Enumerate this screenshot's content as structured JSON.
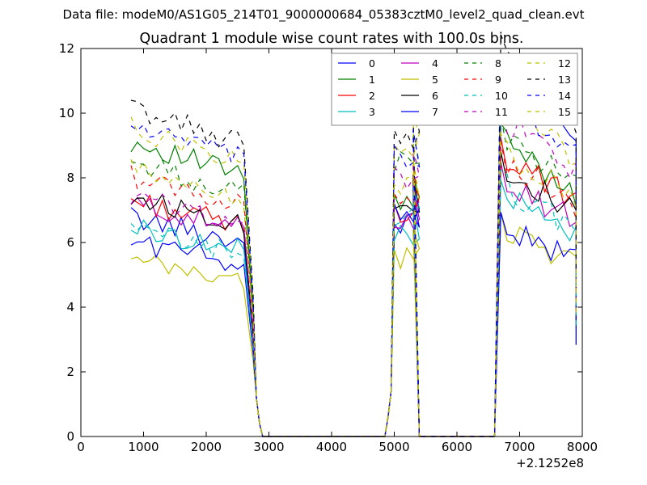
{
  "suptitle": "Data file: modeM0/AS1G05_214T01_9000000684_05383cztM0_level2_quad_clean.evt",
  "chart_data": {
    "type": "line",
    "title": "Quadrant 1 module wise count rates with 100.0s bins.",
    "xlabel": "",
    "ylabel": "",
    "xlim": [
      0,
      8000
    ],
    "ylim": [
      0,
      12
    ],
    "x_offset_label": "+2.1252e8",
    "xticks": [
      0,
      1000,
      2000,
      3000,
      4000,
      5000,
      6000,
      7000,
      8000
    ],
    "yticks": [
      0,
      2,
      4,
      6,
      8,
      10,
      12
    ],
    "xtick_labels": [
      "0",
      "1000",
      "2000",
      "3000",
      "4000",
      "5000",
      "6000",
      "7000",
      "8000"
    ],
    "ytick_labels": [
      "0",
      "2",
      "4",
      "6",
      "8",
      "10",
      "12"
    ],
    "grid": false,
    "legend_position": "top-right",
    "legend_columns": 4,
    "segments": [
      {
        "x_start": 800,
        "x_step": 100,
        "count": 19
      },
      {
        "x_start": 4900,
        "x_step": 100,
        "count": 5
      },
      {
        "x_start": 6700,
        "x_step": 100,
        "count": 13
      }
    ],
    "series": [
      {
        "name": "0",
        "color": "#0000ff",
        "dash": "solid",
        "levels": [
          6.4,
          6.6,
          10.7
        ]
      },
      {
        "name": "1",
        "color": "#008000",
        "dash": "solid",
        "levels": [
          8.6,
          7.2,
          8.8
        ]
      },
      {
        "name": "2",
        "color": "#ff0000",
        "dash": "solid",
        "levels": [
          6.9,
          7.0,
          8.4
        ]
      },
      {
        "name": "3",
        "color": "#00bfbf",
        "dash": "solid",
        "levels": [
          6.1,
          6.3,
          7.2
        ]
      },
      {
        "name": "4",
        "color": "#bf00bf",
        "dash": "solid",
        "levels": [
          6.8,
          6.8,
          7.7
        ]
      },
      {
        "name": "5",
        "color": "#bfbf00",
        "dash": "solid",
        "levels": [
          5.1,
          5.5,
          6.3
        ]
      },
      {
        "name": "6",
        "color": "#000000",
        "dash": "solid",
        "levels": [
          7.0,
          7.2,
          8.0
        ]
      },
      {
        "name": "7",
        "color": "#0000ff",
        "dash": "solid",
        "levels": [
          5.7,
          6.9,
          6.3
        ]
      },
      {
        "name": "8",
        "color": "#008000",
        "dash": "dashed",
        "levels": [
          8.0,
          8.5,
          9.0
        ]
      },
      {
        "name": "9",
        "color": "#ff0000",
        "dash": "dashed",
        "levels": [
          7.6,
          7.5,
          8.3
        ]
      },
      {
        "name": "10",
        "color": "#00bfbf",
        "dash": "dashed",
        "levels": [
          6.0,
          6.8,
          7.5
        ]
      },
      {
        "name": "11",
        "color": "#bf00bf",
        "dash": "dashed",
        "levels": [
          7.0,
          8.0,
          9.5
        ]
      },
      {
        "name": "12",
        "color": "#bfbf00",
        "dash": "dashed",
        "levels": [
          9.0,
          9.0,
          10.0
        ]
      },
      {
        "name": "13",
        "color": "#000000",
        "dash": "dashed",
        "levels": [
          9.6,
          9.3,
          11.3
        ]
      },
      {
        "name": "14",
        "color": "#0000ff",
        "dash": "dashed",
        "levels": [
          9.1,
          8.6,
          10.2
        ]
      },
      {
        "name": "15",
        "color": "#bfbf00",
        "dash": "dashed",
        "levels": [
          7.8,
          7.7,
          8.5
        ]
      }
    ]
  }
}
